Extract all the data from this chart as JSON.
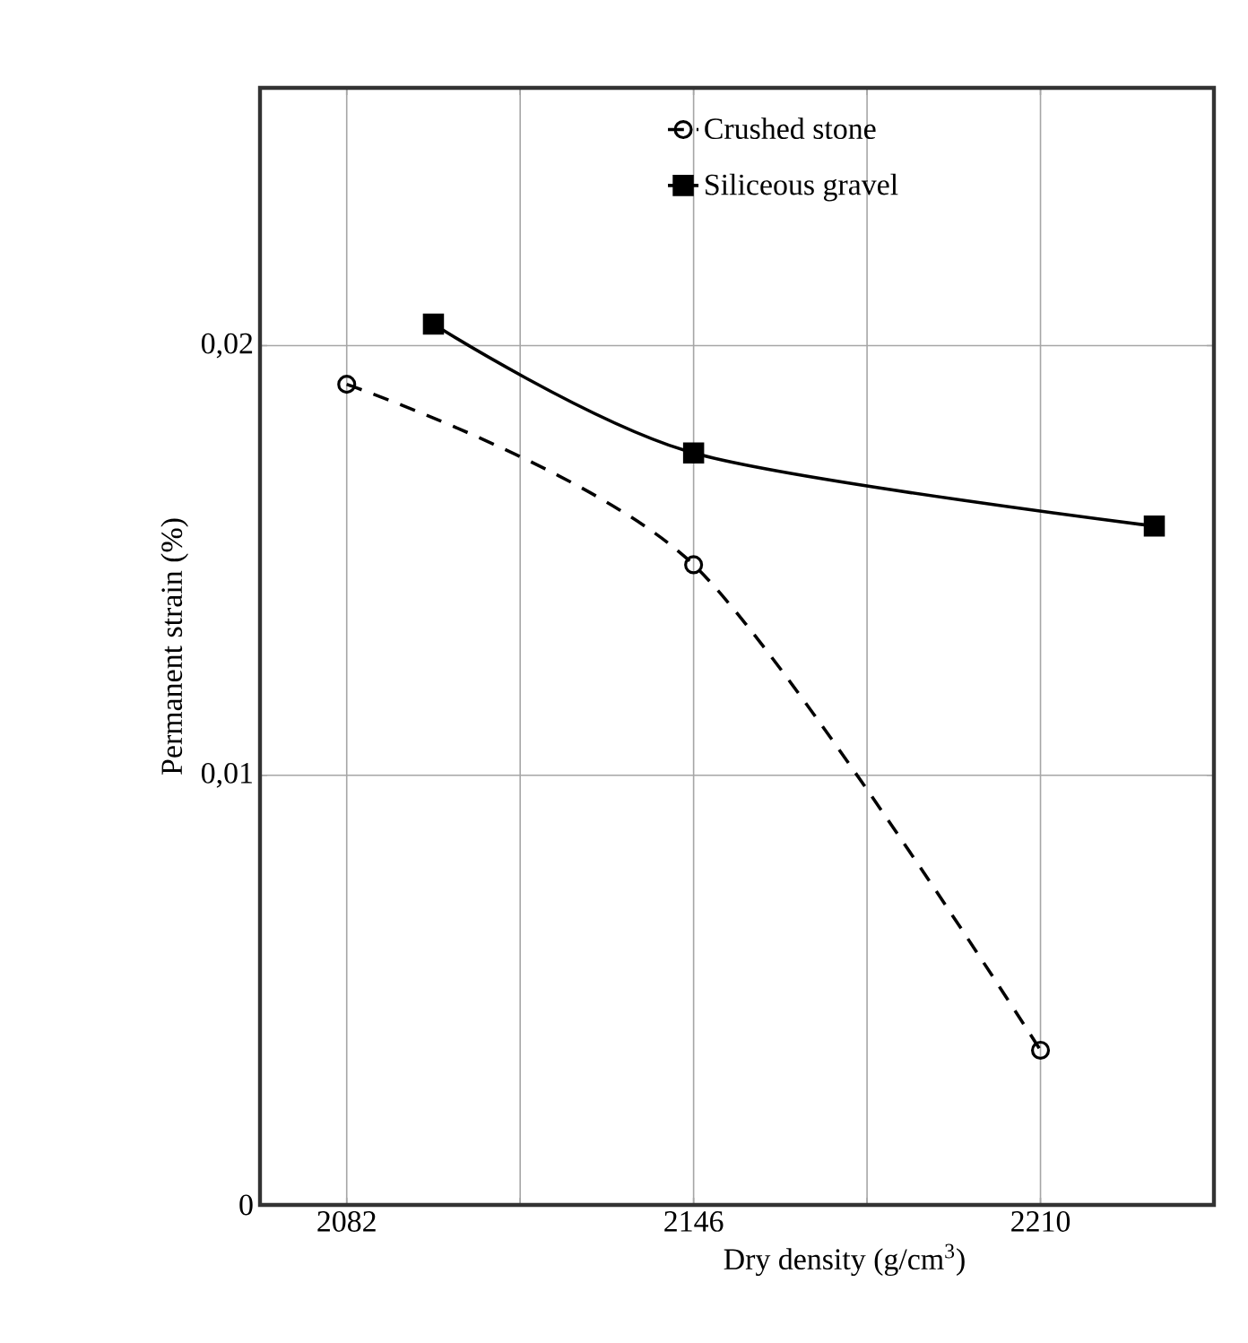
{
  "chart_data": {
    "type": "line",
    "xlabel": "Dry density (g/cm$^{3}$)",
    "ylabel": "Permanent strain (%)",
    "xlim": [
      2066,
      2242
    ],
    "ylim": [
      0,
      0.026
    ],
    "xticks": [
      2082,
      {
        "value": 2114,
        "label": null
      },
      2146,
      {
        "value": 2178,
        "label": null
      },
      2210
    ],
    "yticks": [
      {
        "value": 0,
        "label": "0"
      },
      {
        "value": 0.01,
        "label": "0,01"
      },
      {
        "value": 0.02,
        "label": "0,02"
      }
    ],
    "grid": true,
    "legend": "top",
    "series": [
      {
        "name": "Crushed stone",
        "color": "#000000",
        "marker": "circle",
        "line_style": "dashed",
        "x": [
          2082,
          2146,
          2210
        ],
        "values": [
          0.0191,
          0.0149,
          0.0036
        ]
      },
      {
        "name": "Siliceous gravel",
        "color": "#000000",
        "marker": "square",
        "line_style": "solid",
        "x": [
          2098,
          2146,
          2231
        ],
        "values": [
          0.0205,
          0.0175,
          0.0158
        ]
      }
    ]
  }
}
